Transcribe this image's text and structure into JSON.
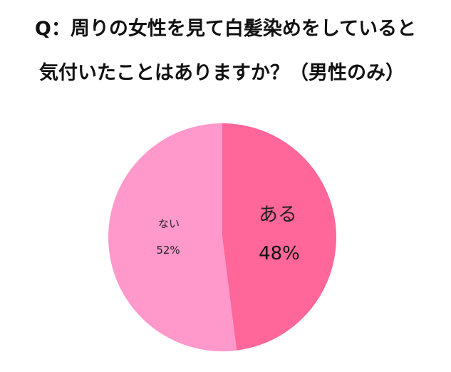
{
  "chart_data": {
    "type": "pie",
    "title_lines": [
      "Q：周りの女性を見て白髪染めをしていると",
      "気付いたことはありますか？（男性のみ）"
    ],
    "slices": [
      {
        "label": "ある",
        "value": 48,
        "value_label": "48%",
        "color": "#FF6699"
      },
      {
        "label": "ない",
        "value": 52,
        "value_label": "52%",
        "color": "#FF99CC"
      }
    ],
    "start": "top",
    "direction": "clockwise"
  }
}
